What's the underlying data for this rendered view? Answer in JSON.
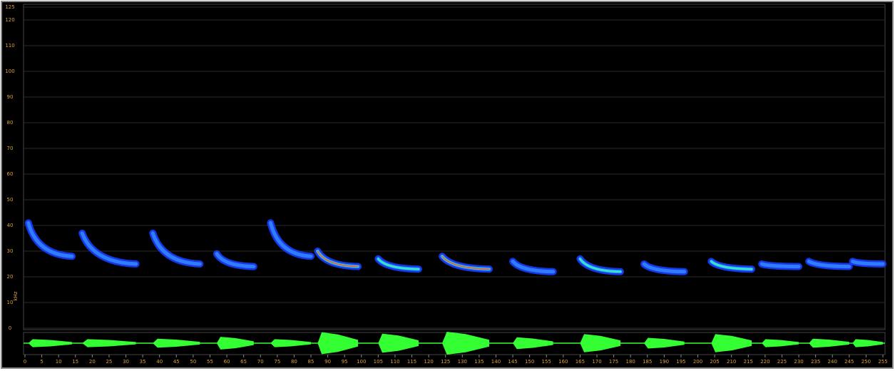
{
  "chart_data": {
    "type": "spectrogram",
    "y_label": "kHz",
    "xlim": [
      0,
      255
    ],
    "ylim": [
      0,
      125
    ],
    "yticks": [
      0,
      10,
      20,
      30,
      40,
      50,
      60,
      70,
      80,
      90,
      100,
      110,
      120,
      125
    ],
    "xticks": [
      0,
      5,
      10,
      15,
      20,
      25,
      30,
      35,
      40,
      45,
      50,
      55,
      60,
      65,
      70,
      75,
      80,
      85,
      90,
      95,
      100,
      105,
      110,
      115,
      120,
      125,
      130,
      135,
      140,
      145,
      150,
      155,
      160,
      165,
      170,
      175,
      180,
      185,
      190,
      195,
      200,
      205,
      210,
      215,
      220,
      225,
      230,
      235,
      240,
      245,
      250,
      255
    ],
    "grid": true,
    "call_color": "#1a3cff",
    "wave_color": "#33ff33",
    "calls": [
      {
        "start": 1,
        "end": 14,
        "f_start": 41,
        "f_end": 28,
        "amplitude": 0.2
      },
      {
        "start": 17,
        "end": 33,
        "f_start": 37,
        "f_end": 25,
        "amplitude": 0.2
      },
      {
        "start": 38,
        "end": 52,
        "f_start": 37,
        "f_end": 25,
        "amplitude": 0.25
      },
      {
        "start": 57,
        "end": 68,
        "f_start": 29,
        "f_end": 24,
        "amplitude": 0.45
      },
      {
        "start": 73,
        "end": 85,
        "f_start": 41,
        "f_end": 28,
        "amplitude": 0.2
      },
      {
        "start": 87,
        "end": 99,
        "f_start": 30,
        "f_end": 24,
        "amplitude": 0.95
      },
      {
        "start": 105,
        "end": 117,
        "f_start": 27,
        "f_end": 23,
        "amplitude": 0.8
      },
      {
        "start": 124,
        "end": 138,
        "f_start": 28,
        "f_end": 23,
        "amplitude": 1.0
      },
      {
        "start": 145,
        "end": 157,
        "f_start": 26,
        "f_end": 22,
        "amplitude": 0.4
      },
      {
        "start": 165,
        "end": 177,
        "f_start": 27,
        "f_end": 22,
        "amplitude": 0.75
      },
      {
        "start": 184,
        "end": 196,
        "f_start": 25,
        "f_end": 22,
        "amplitude": 0.35
      },
      {
        "start": 204,
        "end": 216,
        "f_start": 26,
        "f_end": 23,
        "amplitude": 0.75
      },
      {
        "start": 219,
        "end": 230,
        "f_start": 25,
        "f_end": 24,
        "amplitude": 0.2
      },
      {
        "start": 233,
        "end": 245,
        "f_start": 26,
        "f_end": 24,
        "amplitude": 0.25
      },
      {
        "start": 246,
        "end": 255,
        "f_start": 26,
        "f_end": 25,
        "amplitude": 0.2
      }
    ]
  }
}
